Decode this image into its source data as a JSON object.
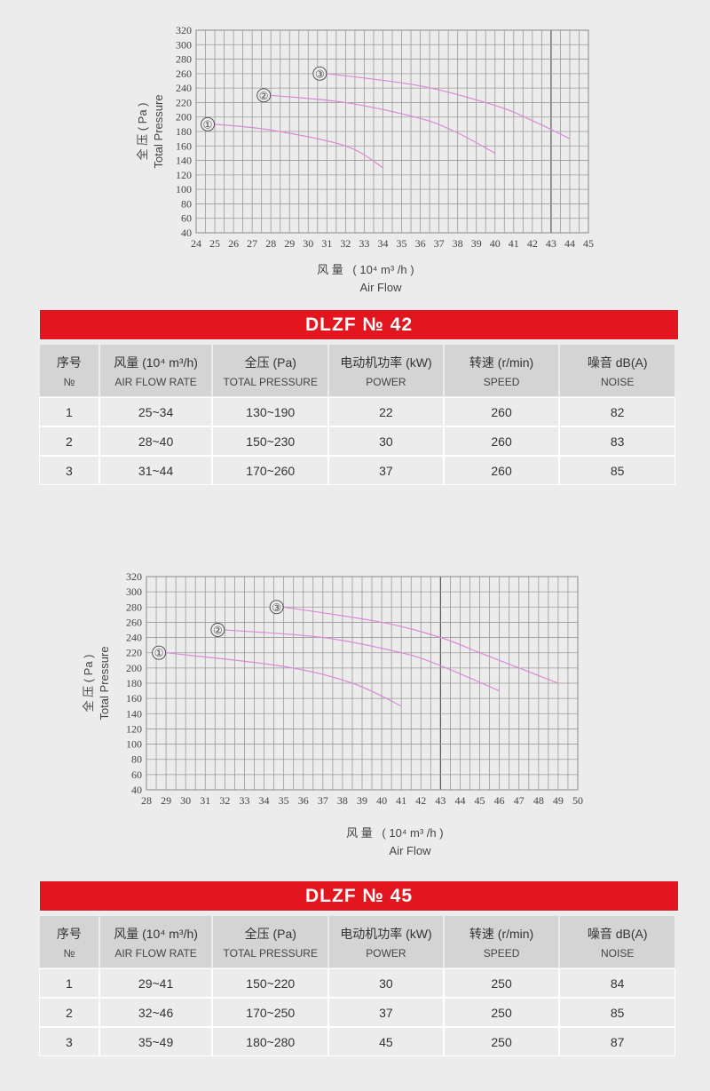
{
  "chart_data": [
    {
      "type": "line",
      "xlabel_cn": "风 量",
      "xlabel_unit": "( 10⁴ m³ /h )",
      "xlabel": "Air Flow",
      "ylabel_cn": "全 压 ( Pa )",
      "ylabel": "Total Pressure",
      "xlim": [
        24,
        45
      ],
      "ylim": [
        40,
        320
      ],
      "xticks": [
        24,
        25,
        26,
        27,
        28,
        29,
        30,
        31,
        32,
        33,
        34,
        35,
        36,
        37,
        38,
        39,
        40,
        41,
        42,
        43,
        44,
        45
      ],
      "yticks": [
        40,
        60,
        80,
        100,
        120,
        140,
        160,
        180,
        200,
        220,
        240,
        260,
        280,
        300,
        320
      ],
      "grid": true,
      "highlight_x": 43,
      "line_color": "#d98ad6",
      "series": [
        {
          "name": "①",
          "x": [
            25,
            28,
            32,
            34
          ],
          "y": [
            190,
            182,
            160,
            130
          ]
        },
        {
          "name": "②",
          "x": [
            28,
            32,
            36,
            38,
            40
          ],
          "y": [
            230,
            220,
            198,
            178,
            150
          ]
        },
        {
          "name": "③",
          "x": [
            31,
            36,
            40,
            42,
            44
          ],
          "y": [
            260,
            243,
            216,
            195,
            170
          ]
        }
      ]
    },
    {
      "type": "line",
      "xlabel_cn": "风 量",
      "xlabel_unit": "( 10⁴ m³ /h )",
      "xlabel": "Air Flow",
      "ylabel_cn": "全 压 ( Pa )",
      "ylabel": "Total Pressure",
      "xlim": [
        28,
        50
      ],
      "ylim": [
        40,
        320
      ],
      "xticks": [
        28,
        29,
        30,
        31,
        32,
        33,
        34,
        35,
        36,
        37,
        38,
        39,
        40,
        41,
        42,
        43,
        44,
        45,
        46,
        47,
        48,
        49,
        50
      ],
      "yticks": [
        40,
        60,
        80,
        100,
        120,
        140,
        160,
        180,
        200,
        220,
        240,
        260,
        280,
        300,
        320
      ],
      "grid": true,
      "highlight_x": 43,
      "line_color": "#d98ad6",
      "series": [
        {
          "name": "①",
          "x": [
            29,
            35,
            38.5,
            41
          ],
          "y": [
            220,
            202,
            180,
            150
          ]
        },
        {
          "name": "②",
          "x": [
            32,
            37,
            41,
            43,
            46
          ],
          "y": [
            250,
            240,
            220,
            203,
            170
          ]
        },
        {
          "name": "③",
          "x": [
            35,
            40,
            43,
            45,
            47,
            49
          ],
          "y": [
            280,
            260,
            240,
            220,
            200,
            180
          ]
        }
      ]
    }
  ],
  "colors": {
    "accent_red": "#e3161f",
    "background": "#ececec",
    "header_cell": "#d4d4d4"
  },
  "headers": [
    {
      "cn": "序号",
      "en": "№"
    },
    {
      "cn": "风量 (10⁴ m³/h)",
      "en": "AIR FLOW RATE"
    },
    {
      "cn": "全压 (Pa)",
      "en": "TOTAL PRESSURE"
    },
    {
      "cn": "电动机功率 (kW)",
      "en": "POWER"
    },
    {
      "cn": "转速 (r/min)",
      "en": "SPEED"
    },
    {
      "cn": "噪音  dB(A)",
      "en": "NOISE"
    }
  ],
  "tables": [
    {
      "title": "DLZF № 42",
      "rows": [
        [
          "1",
          "25~34",
          "130~190",
          "22",
          "260",
          "82"
        ],
        [
          "2",
          "28~40",
          "150~230",
          "30",
          "260",
          "83"
        ],
        [
          "3",
          "31~44",
          "170~260",
          "37",
          "260",
          "85"
        ]
      ]
    },
    {
      "title": "DLZF № 45",
      "rows": [
        [
          "1",
          "29~41",
          "150~220",
          "30",
          "250",
          "84"
        ],
        [
          "2",
          "32~46",
          "170~250",
          "37",
          "250",
          "85"
        ],
        [
          "3",
          "35~49",
          "180~280",
          "45",
          "250",
          "87"
        ]
      ]
    }
  ]
}
